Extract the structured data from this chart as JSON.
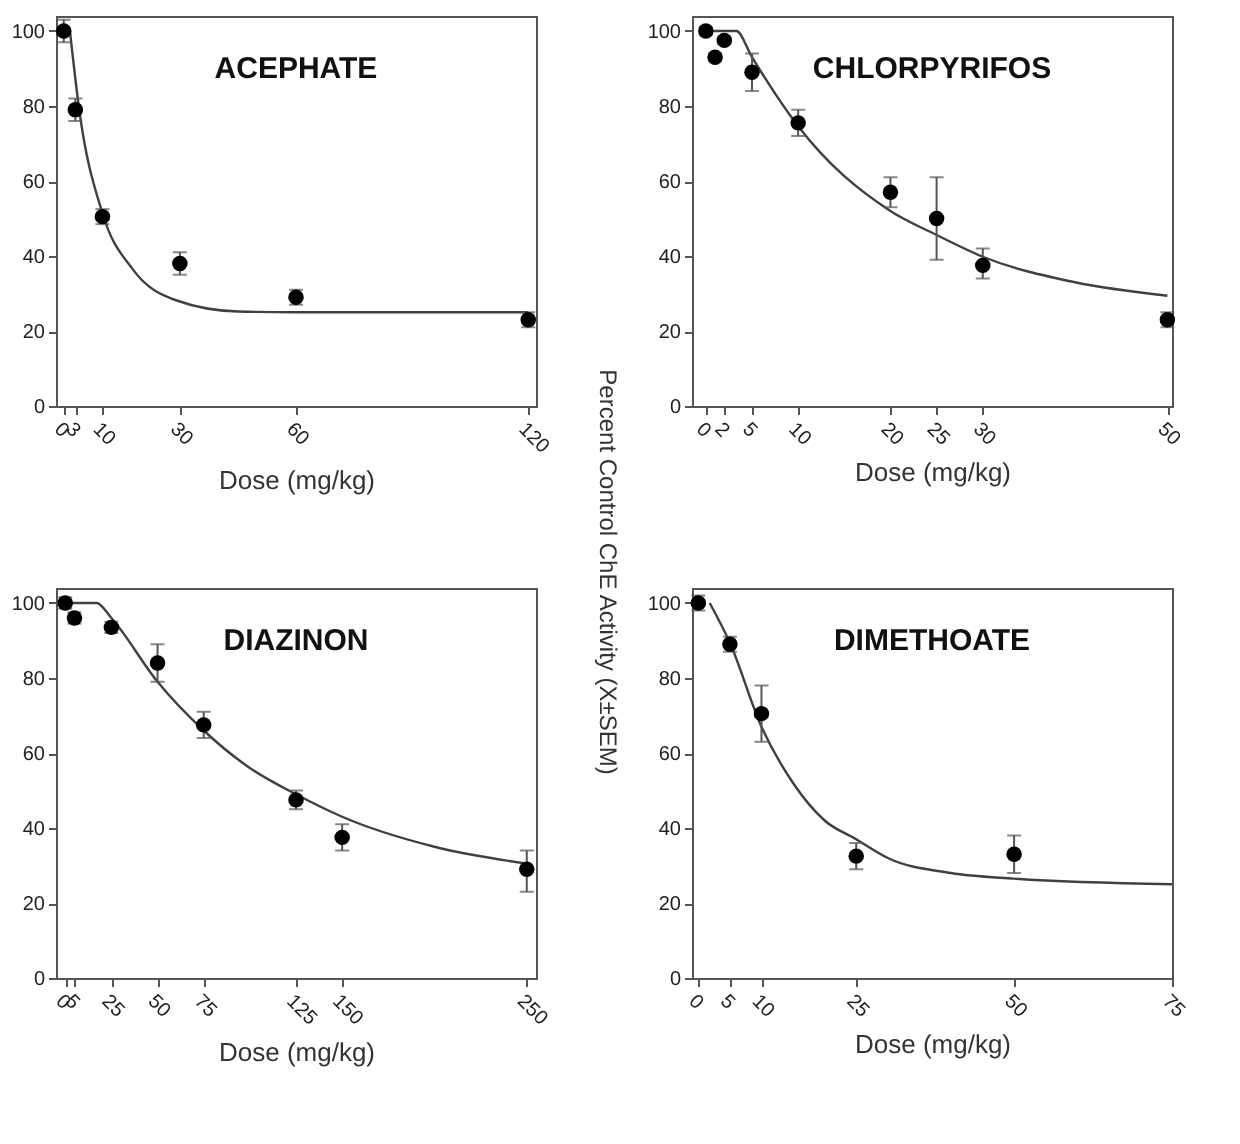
{
  "chart_data": [
    {
      "type": "scatter",
      "title": "ACEPHATE",
      "xlabel": "Dose (mg/kg)",
      "xlim": [
        -2,
        122
      ],
      "xticks": [
        0,
        3,
        10,
        30,
        60,
        120
      ],
      "ylim": [
        0,
        104
      ],
      "yticks": [
        0,
        20,
        40,
        60,
        80,
        100
      ],
      "grid": false,
      "line_style": "solid",
      "series": [
        {
          "type": "scatter",
          "marker": "circle",
          "color": "#000000",
          "x": [
            0,
            3,
            10,
            30,
            60,
            120
          ],
          "values": [
            100,
            79,
            50.5,
            38,
            29,
            23
          ],
          "errors": [
            3,
            3,
            2,
            3,
            2,
            2
          ]
        },
        {
          "type": "line",
          "color": "#404040",
          "x": [
            1.6,
            4,
            10,
            17.8,
            29,
            45,
            60,
            90,
            120
          ],
          "values": [
            100,
            79,
            51.4,
            36.5,
            28.2,
            25.2,
            25,
            25,
            25
          ]
        }
      ]
    },
    {
      "type": "scatter",
      "title": "CHLORPYRIFOS",
      "xlabel": "Dose (mg/kg)",
      "ylabel": "Percent Control ChE Activity (X±SEM)",
      "xlim": [
        -1.5,
        50.5
      ],
      "xticks": [
        0,
        2,
        5,
        10,
        20,
        25,
        30,
        50
      ],
      "ylim": [
        0,
        104
      ],
      "yticks": [
        0,
        20,
        40,
        60,
        80,
        100
      ],
      "grid": false,
      "line_style": "solid",
      "series": [
        {
          "type": "scatter",
          "marker": "circle",
          "color": "#000000",
          "x": [
            0,
            1,
            2,
            5,
            10,
            20,
            25,
            30,
            50
          ],
          "values": [
            100,
            93,
            97.5,
            89,
            75.5,
            57,
            50,
            37.5,
            23
          ],
          "errors": [
            1,
            1,
            1,
            [
              84,
              94
            ],
            [
              72,
              79
            ],
            [
              53,
              61
            ],
            [
              39,
              61
            ],
            [
              34,
              42
            ],
            2
          ]
        },
        {
          "type": "line",
          "color": "#404040",
          "x": [
            0,
            3.3,
            5,
            10,
            20,
            25,
            30,
            40,
            50
          ],
          "values": [
            100,
            100,
            93,
            74.6,
            52,
            45.6,
            39.8,
            33,
            29.4
          ]
        }
      ]
    },
    {
      "type": "scatter",
      "title": "DIAZINON",
      "xlabel": "Dose (mg/kg)",
      "xlim": [
        -5,
        255
      ],
      "xticks": [
        0,
        5,
        25,
        50,
        75,
        125,
        150,
        250
      ],
      "ylim": [
        0,
        104
      ],
      "yticks": [
        0,
        20,
        40,
        60,
        80,
        100
      ],
      "grid": false,
      "line_style": "solid",
      "series": [
        {
          "type": "scatter",
          "marker": "circle",
          "color": "#000000",
          "x": [
            0,
            5,
            25,
            50,
            75,
            125,
            150,
            250
          ],
          "values": [
            100,
            96,
            93.5,
            84,
            67.5,
            47.5,
            37.5,
            29
          ],
          "errors": [
            1.5,
            1.5,
            1.5,
            [
              79,
              89
            ],
            [
              64,
              71
            ],
            [
              45,
              50
            ],
            [
              34,
              41
            ],
            [
              23,
              34
            ]
          ]
        },
        {
          "type": "line",
          "color": "#404040",
          "x": [
            0,
            17,
            25,
            50,
            75,
            100,
            125,
            150,
            200,
            250
          ],
          "values": [
            100,
            100,
            96,
            79,
            66,
            56,
            49,
            43,
            35,
            30.5
          ]
        }
      ]
    },
    {
      "type": "scatter",
      "title": "DIMETHOATE",
      "xlabel": "Dose (mg/kg)",
      "xlim": [
        -1,
        75
      ],
      "xticks": [
        0,
        5,
        10,
        25,
        50,
        75
      ],
      "ylim": [
        0,
        104
      ],
      "yticks": [
        0,
        20,
        40,
        60,
        80,
        100
      ],
      "grid": false,
      "line_style": "solid",
      "series": [
        {
          "type": "scatter",
          "marker": "circle",
          "color": "#000000",
          "x": [
            0,
            5,
            10,
            25,
            50
          ],
          "values": [
            100,
            89,
            70.5,
            32.5,
            33
          ],
          "errors": [
            2,
            2,
            [
              63,
              78
            ],
            [
              29,
              36
            ],
            [
              28,
              38
            ]
          ]
        },
        {
          "type": "line",
          "color": "#404040",
          "x": [
            1.8,
            5,
            10,
            15,
            20,
            25,
            30,
            40,
            50,
            75
          ],
          "values": [
            100,
            89.4,
            67,
            52,
            42,
            37,
            32,
            28,
            26.5,
            25
          ]
        }
      ]
    }
  ]
}
